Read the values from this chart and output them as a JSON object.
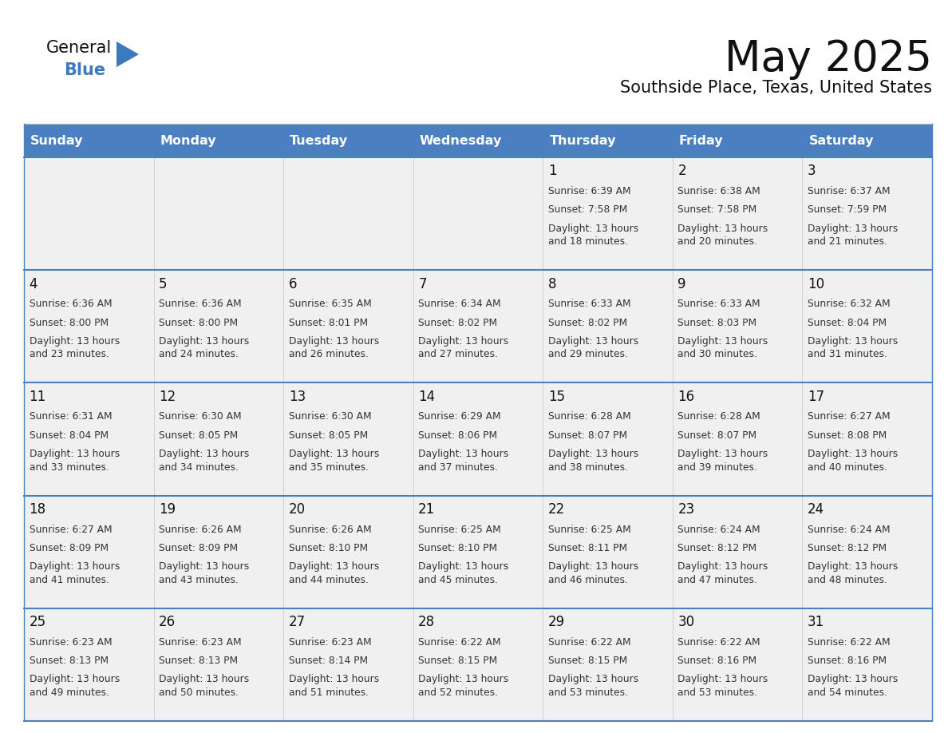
{
  "title": "May 2025",
  "subtitle": "Southside Place, Texas, United States",
  "days_of_week": [
    "Sunday",
    "Monday",
    "Tuesday",
    "Wednesday",
    "Thursday",
    "Friday",
    "Saturday"
  ],
  "header_bg": "#4a7fc1",
  "header_text": "#FFFFFF",
  "cell_bg": "#f0f0f0",
  "cell_border_color": "#4a7fc1",
  "cell_border_thin": "#cccccc",
  "title_color": "#111111",
  "subtitle_color": "#111111",
  "cell_text_color": "#333333",
  "day_number_color": "#111111",
  "logo_general_color": "#111111",
  "logo_blue_color": "#3a7abf",
  "logo_triangle_color": "#3a7abf",
  "calendar_data": [
    [
      {
        "day": null,
        "sunrise": null,
        "sunset": null,
        "daylight_suffix": null
      },
      {
        "day": null,
        "sunrise": null,
        "sunset": null,
        "daylight_suffix": null
      },
      {
        "day": null,
        "sunrise": null,
        "sunset": null,
        "daylight_suffix": null
      },
      {
        "day": null,
        "sunrise": null,
        "sunset": null,
        "daylight_suffix": null
      },
      {
        "day": 1,
        "sunrise": "6:39 AM",
        "sunset": "7:58 PM",
        "daylight_suffix": "18 minutes."
      },
      {
        "day": 2,
        "sunrise": "6:38 AM",
        "sunset": "7:58 PM",
        "daylight_suffix": "20 minutes."
      },
      {
        "day": 3,
        "sunrise": "6:37 AM",
        "sunset": "7:59 PM",
        "daylight_suffix": "21 minutes."
      }
    ],
    [
      {
        "day": 4,
        "sunrise": "6:36 AM",
        "sunset": "8:00 PM",
        "daylight_suffix": "23 minutes."
      },
      {
        "day": 5,
        "sunrise": "6:36 AM",
        "sunset": "8:00 PM",
        "daylight_suffix": "24 minutes."
      },
      {
        "day": 6,
        "sunrise": "6:35 AM",
        "sunset": "8:01 PM",
        "daylight_suffix": "26 minutes."
      },
      {
        "day": 7,
        "sunrise": "6:34 AM",
        "sunset": "8:02 PM",
        "daylight_suffix": "27 minutes."
      },
      {
        "day": 8,
        "sunrise": "6:33 AM",
        "sunset": "8:02 PM",
        "daylight_suffix": "29 minutes."
      },
      {
        "day": 9,
        "sunrise": "6:33 AM",
        "sunset": "8:03 PM",
        "daylight_suffix": "30 minutes."
      },
      {
        "day": 10,
        "sunrise": "6:32 AM",
        "sunset": "8:04 PM",
        "daylight_suffix": "31 minutes."
      }
    ],
    [
      {
        "day": 11,
        "sunrise": "6:31 AM",
        "sunset": "8:04 PM",
        "daylight_suffix": "33 minutes."
      },
      {
        "day": 12,
        "sunrise": "6:30 AM",
        "sunset": "8:05 PM",
        "daylight_suffix": "34 minutes."
      },
      {
        "day": 13,
        "sunrise": "6:30 AM",
        "sunset": "8:05 PM",
        "daylight_suffix": "35 minutes."
      },
      {
        "day": 14,
        "sunrise": "6:29 AM",
        "sunset": "8:06 PM",
        "daylight_suffix": "37 minutes."
      },
      {
        "day": 15,
        "sunrise": "6:28 AM",
        "sunset": "8:07 PM",
        "daylight_suffix": "38 minutes."
      },
      {
        "day": 16,
        "sunrise": "6:28 AM",
        "sunset": "8:07 PM",
        "daylight_suffix": "39 minutes."
      },
      {
        "day": 17,
        "sunrise": "6:27 AM",
        "sunset": "8:08 PM",
        "daylight_suffix": "40 minutes."
      }
    ],
    [
      {
        "day": 18,
        "sunrise": "6:27 AM",
        "sunset": "8:09 PM",
        "daylight_suffix": "41 minutes."
      },
      {
        "day": 19,
        "sunrise": "6:26 AM",
        "sunset": "8:09 PM",
        "daylight_suffix": "43 minutes."
      },
      {
        "day": 20,
        "sunrise": "6:26 AM",
        "sunset": "8:10 PM",
        "daylight_suffix": "44 minutes."
      },
      {
        "day": 21,
        "sunrise": "6:25 AM",
        "sunset": "8:10 PM",
        "daylight_suffix": "45 minutes."
      },
      {
        "day": 22,
        "sunrise": "6:25 AM",
        "sunset": "8:11 PM",
        "daylight_suffix": "46 minutes."
      },
      {
        "day": 23,
        "sunrise": "6:24 AM",
        "sunset": "8:12 PM",
        "daylight_suffix": "47 minutes."
      },
      {
        "day": 24,
        "sunrise": "6:24 AM",
        "sunset": "8:12 PM",
        "daylight_suffix": "48 minutes."
      }
    ],
    [
      {
        "day": 25,
        "sunrise": "6:23 AM",
        "sunset": "8:13 PM",
        "daylight_suffix": "49 minutes."
      },
      {
        "day": 26,
        "sunrise": "6:23 AM",
        "sunset": "8:13 PM",
        "daylight_suffix": "50 minutes."
      },
      {
        "day": 27,
        "sunrise": "6:23 AM",
        "sunset": "8:14 PM",
        "daylight_suffix": "51 minutes."
      },
      {
        "day": 28,
        "sunrise": "6:22 AM",
        "sunset": "8:15 PM",
        "daylight_suffix": "52 minutes."
      },
      {
        "day": 29,
        "sunrise": "6:22 AM",
        "sunset": "8:15 PM",
        "daylight_suffix": "53 minutes."
      },
      {
        "day": 30,
        "sunrise": "6:22 AM",
        "sunset": "8:16 PM",
        "daylight_suffix": "53 minutes."
      },
      {
        "day": 31,
        "sunrise": "6:22 AM",
        "sunset": "8:16 PM",
        "daylight_suffix": "54 minutes."
      }
    ]
  ]
}
